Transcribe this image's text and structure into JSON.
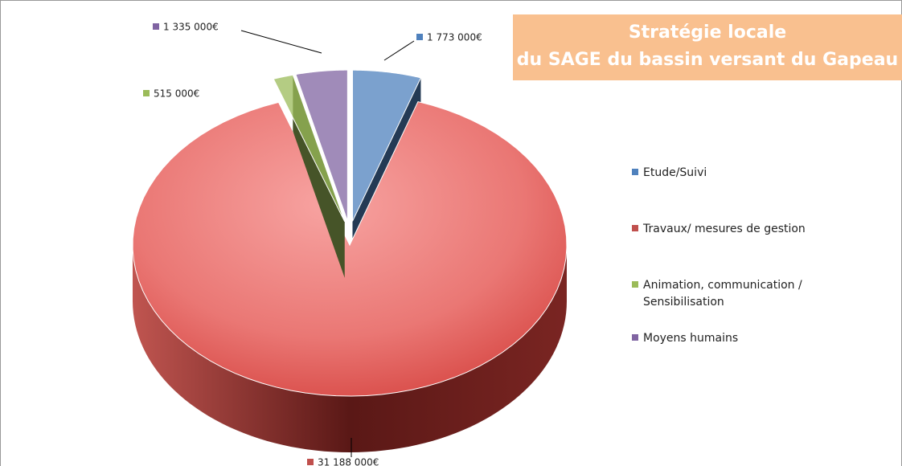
{
  "chart_data": {
    "type": "pie3d",
    "title": "Stratégie locale",
    "subtitle": "du SAGE du bassin versant du Gapeau",
    "categories": [
      "Etude/Suivi",
      "Travaux/ mesures de gestion",
      "Animation, communication / Sensibilisation",
      "Moyens humains"
    ],
    "values": [
      1773000,
      31188000,
      515000,
      1335000
    ],
    "value_labels": [
      "1 773 000€",
      "31 188 000€",
      "515 000€",
      "1 335 000€"
    ],
    "colors": [
      "#4f81bd",
      "#c0504d",
      "#9bbb59",
      "#8064a2"
    ],
    "legend": "right"
  }
}
